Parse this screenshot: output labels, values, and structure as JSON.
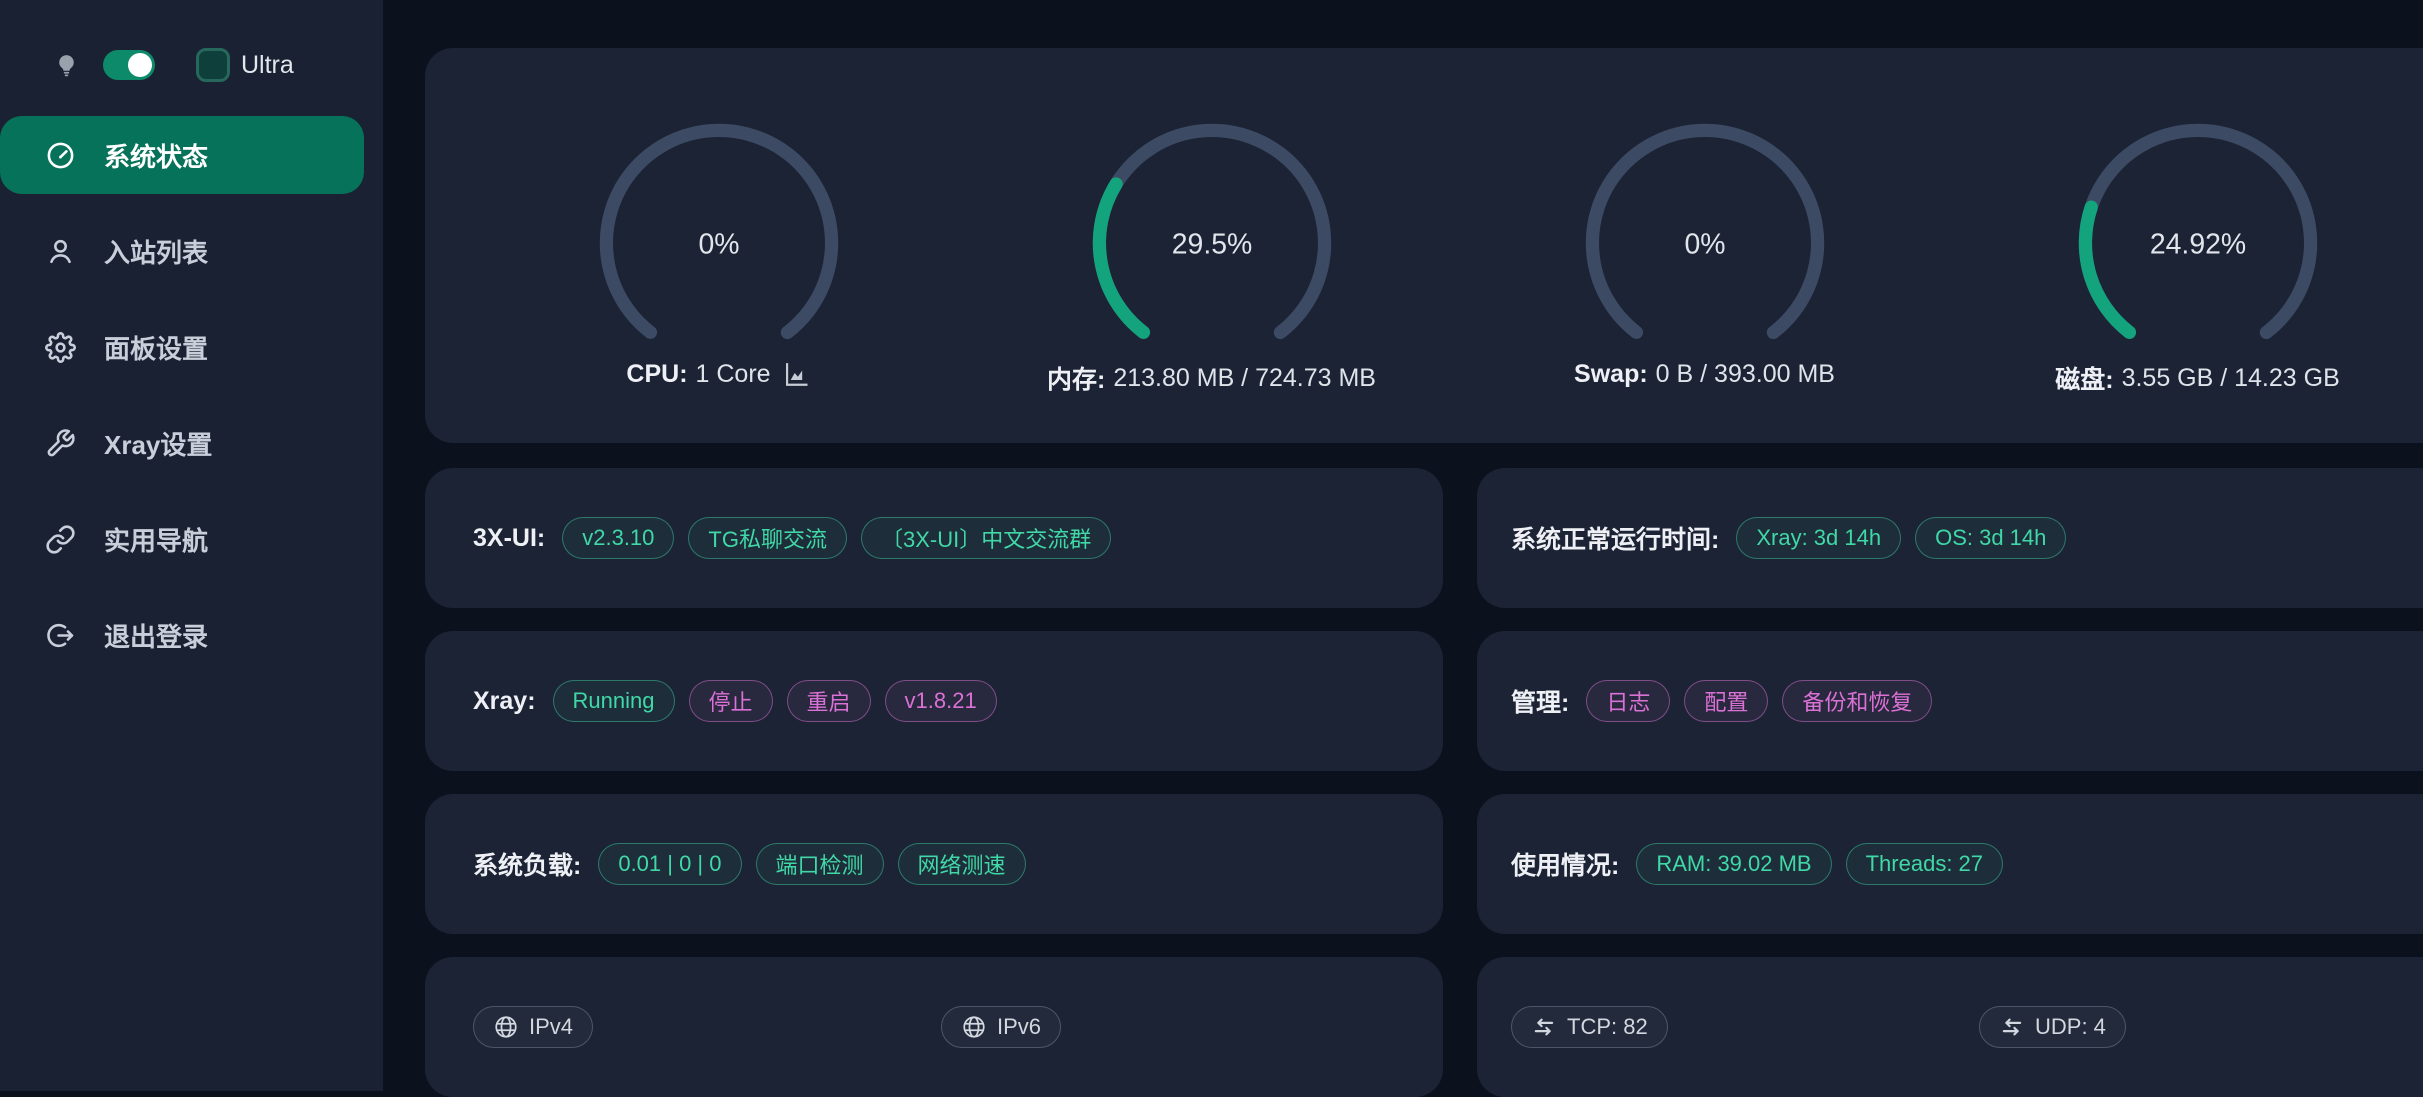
{
  "colors": {
    "page_bg": "#0c111e",
    "sidebar_bg": "#1a2132",
    "card_bg": "#1b2334",
    "active_item_bg": "#06725a",
    "toggle_green": "#0d8a69",
    "gauge_track": "#3c4a64",
    "gauge_fill": "#14a47d",
    "pill_green": "#40d8a6",
    "pill_pink": "#da71d4",
    "pill_gray": "#d3d7df"
  },
  "sidebar": {
    "ultra_label": "Ultra",
    "theme_toggle_on": true,
    "ultra_checked": false,
    "items": [
      {
        "id": "status",
        "icon": "dashboard",
        "label": "系统状态",
        "active": true
      },
      {
        "id": "inbounds",
        "icon": "user",
        "label": "入站列表",
        "active": false
      },
      {
        "id": "panel-settings",
        "icon": "gear",
        "label": "面板设置",
        "active": false
      },
      {
        "id": "xray-settings",
        "icon": "wrench",
        "label": "Xray设置",
        "active": false
      },
      {
        "id": "navigation",
        "icon": "link",
        "label": "实用导航",
        "active": false
      },
      {
        "id": "logout",
        "icon": "logout",
        "label": "退出登录",
        "active": false
      }
    ]
  },
  "gauges": [
    {
      "id": "cpu",
      "percent": 0,
      "percent_label": "0%",
      "label_bold": "CPU:",
      "label_rest": "1 Core",
      "chart_icon": true
    },
    {
      "id": "memory",
      "percent": 29.5,
      "percent_label": "29.5%",
      "label_bold": "内存:",
      "label_rest": "213.80 MB / 724.73 MB",
      "chart_icon": false
    },
    {
      "id": "swap",
      "percent": 0,
      "percent_label": "0%",
      "label_bold": "Swap:",
      "label_rest": "0 B / 393.00 MB",
      "chart_icon": false
    },
    {
      "id": "disk",
      "percent": 24.92,
      "percent_label": "24.92%",
      "label_bold": "磁盘:",
      "label_rest": "3.55 GB / 14.23 GB",
      "chart_icon": false
    }
  ],
  "info_cards": [
    {
      "id": "threex",
      "col": "left",
      "label": "3X-UI:",
      "pills": [
        {
          "text": "v2.3.10",
          "variant": "green",
          "interactable": true
        },
        {
          "text": "TG私聊交流",
          "variant": "green",
          "interactable": true
        },
        {
          "text": "〔3X-UI〕中文交流群",
          "variant": "green",
          "interactable": true
        }
      ]
    },
    {
      "id": "uptime",
      "col": "right",
      "label": "系统正常运行时间:",
      "pills": [
        {
          "text": "Xray: 3d 14h",
          "variant": "green",
          "interactable": false
        },
        {
          "text": "OS: 3d 14h",
          "variant": "green",
          "interactable": false
        }
      ]
    },
    {
      "id": "xray",
      "col": "left",
      "label": "Xray:",
      "pills": [
        {
          "text": "Running",
          "variant": "green",
          "interactable": false
        },
        {
          "text": "停止",
          "variant": "pink",
          "interactable": true
        },
        {
          "text": "重启",
          "variant": "pink",
          "interactable": true
        },
        {
          "text": "v1.8.21",
          "variant": "pink",
          "interactable": true
        }
      ]
    },
    {
      "id": "admin",
      "col": "right",
      "label": "管理:",
      "pills": [
        {
          "text": "日志",
          "variant": "pink",
          "interactable": true
        },
        {
          "text": "配置",
          "variant": "pink",
          "interactable": true
        },
        {
          "text": "备份和恢复",
          "variant": "pink",
          "interactable": true
        }
      ]
    },
    {
      "id": "load",
      "col": "left",
      "label": "系统负载:",
      "pills": [
        {
          "text": "0.01 | 0 | 0",
          "variant": "green",
          "interactable": false
        },
        {
          "text": "端口检测",
          "variant": "green",
          "interactable": true
        },
        {
          "text": "网络测速",
          "variant": "green",
          "interactable": true
        }
      ]
    },
    {
      "id": "usage",
      "col": "right",
      "label": "使用情况:",
      "pills": [
        {
          "text": "RAM: 39.02 MB",
          "variant": "green",
          "interactable": false
        },
        {
          "text": "Threads: 27",
          "variant": "green",
          "interactable": false
        }
      ]
    },
    {
      "id": "ip",
      "col": "left",
      "halves": [
        {
          "icon": "globe",
          "text": "IPv4",
          "interactable": true
        },
        {
          "icon": "globe",
          "text": "IPv6",
          "interactable": true
        }
      ]
    },
    {
      "id": "ports",
      "col": "right",
      "halves": [
        {
          "icon": "swap",
          "text": "TCP: 82",
          "interactable": false
        },
        {
          "icon": "swap",
          "text": "UDP: 4",
          "interactable": false
        }
      ]
    }
  ]
}
